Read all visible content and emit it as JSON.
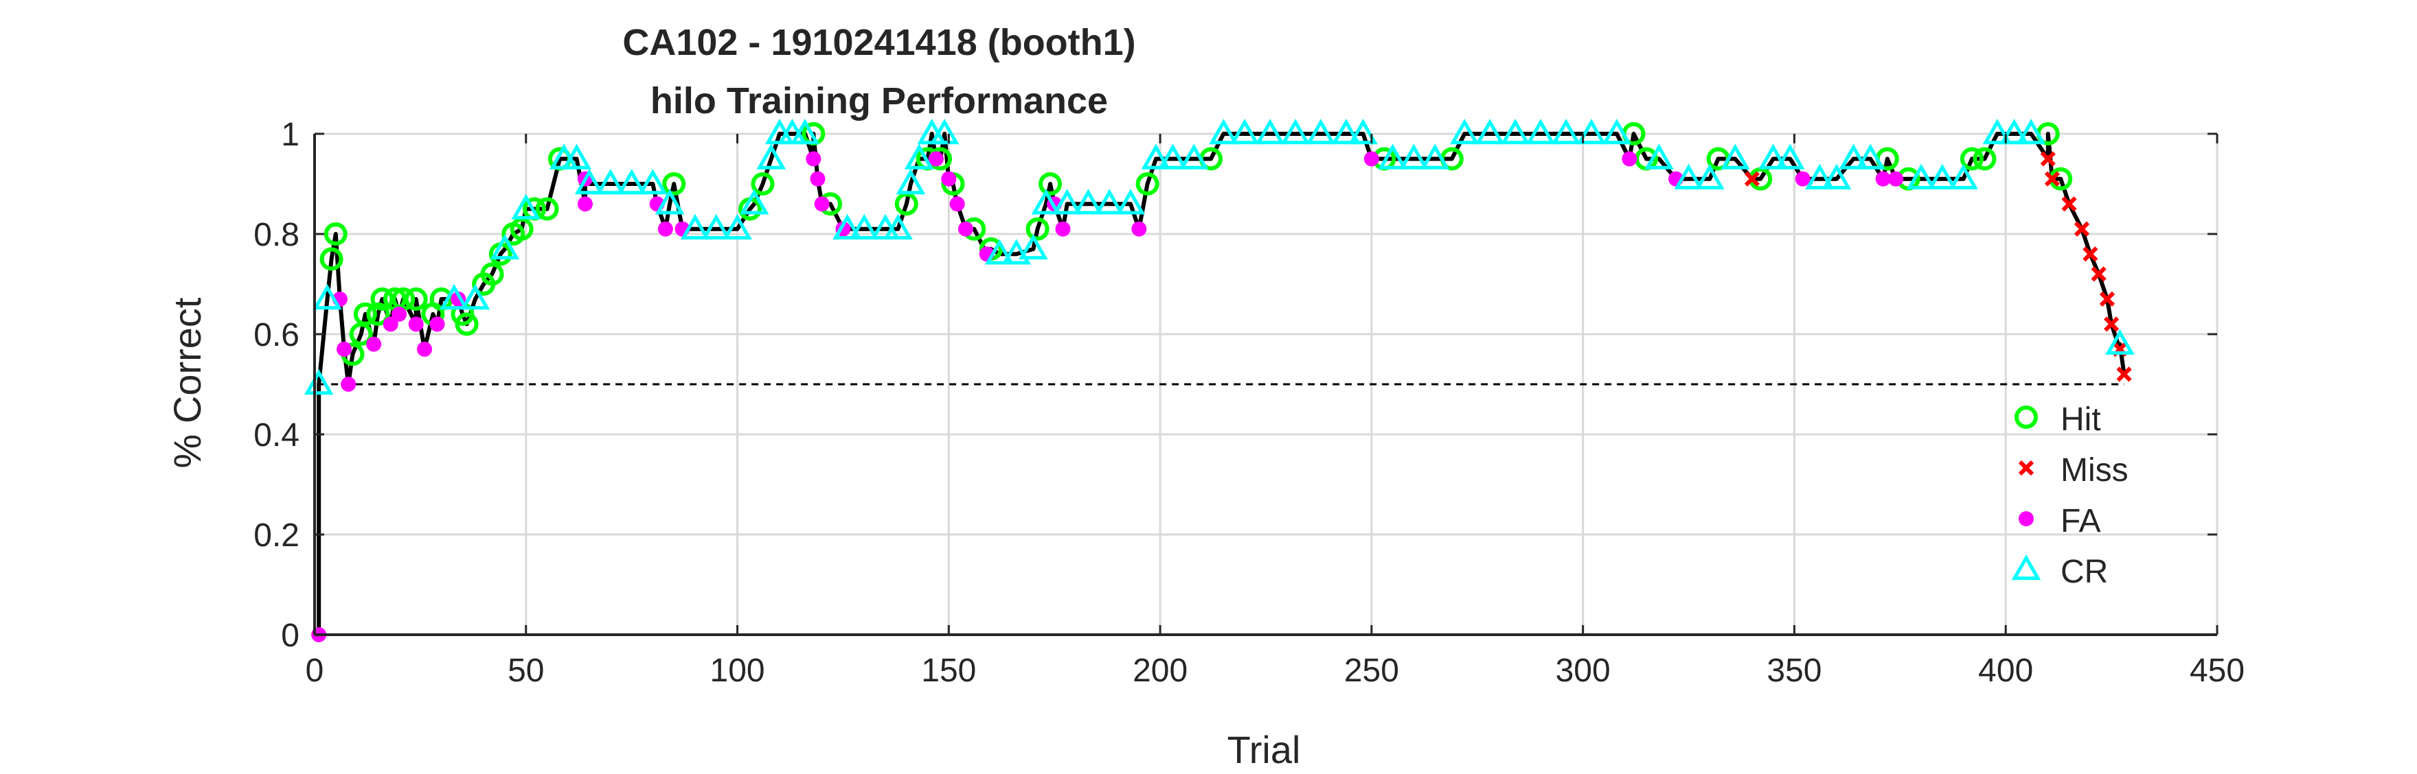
{
  "chart_data": {
    "type": "line",
    "title": "CA102 - 1910241418 (booth1)",
    "subtitle": "hilo Training Performance",
    "xlabel": "Trial",
    "ylabel": "% Correct",
    "xlim": [
      0,
      450
    ],
    "ylim": [
      0,
      1
    ],
    "xticks": [
      0,
      50,
      100,
      150,
      200,
      250,
      300,
      350,
      400,
      450
    ],
    "yticks": [
      0,
      0.2,
      0.4,
      0.6,
      0.8,
      1
    ],
    "xtick_labels": [
      "0",
      "50",
      "100",
      "150",
      "200",
      "250",
      "300",
      "350",
      "400",
      "450"
    ],
    "ytick_labels": [
      "0",
      "0.2",
      "0.4",
      "0.6",
      "0.8",
      "1"
    ],
    "grid": true,
    "legend_position": "bottom-right",
    "chance_line": 0.5,
    "line_color": "#000000",
    "series": [
      {
        "name": "Hit",
        "marker": "circle",
        "color": "#00ff00",
        "points": [
          [
            4,
            0.75
          ],
          [
            5,
            0.8
          ],
          [
            9,
            0.56
          ],
          [
            11,
            0.6
          ],
          [
            12,
            0.64
          ],
          [
            15,
            0.64
          ],
          [
            16,
            0.67
          ],
          [
            19,
            0.67
          ],
          [
            21,
            0.67
          ],
          [
            24,
            0.67
          ],
          [
            28,
            0.64
          ],
          [
            30,
            0.67
          ],
          [
            35,
            0.64
          ],
          [
            36,
            0.62
          ],
          [
            40,
            0.7
          ],
          [
            42,
            0.72
          ],
          [
            44,
            0.76
          ],
          [
            47,
            0.8
          ],
          [
            49,
            0.81
          ],
          [
            52,
            0.85
          ],
          [
            55,
            0.85
          ],
          [
            58,
            0.95
          ],
          [
            85,
            0.9
          ],
          [
            103,
            0.85
          ],
          [
            106,
            0.9
          ],
          [
            118,
            1
          ],
          [
            122,
            0.86
          ],
          [
            140,
            0.86
          ],
          [
            145,
            0.95
          ],
          [
            148,
            0.95
          ],
          [
            151,
            0.9
          ],
          [
            156,
            0.81
          ],
          [
            160,
            0.77
          ],
          [
            171,
            0.81
          ],
          [
            174,
            0.9
          ],
          [
            197,
            0.9
          ],
          [
            212,
            0.95
          ],
          [
            253,
            0.95
          ],
          [
            269,
            0.95
          ],
          [
            312,
            1
          ],
          [
            315,
            0.95
          ],
          [
            332,
            0.95
          ],
          [
            342,
            0.91
          ],
          [
            372,
            0.95
          ],
          [
            377,
            0.91
          ],
          [
            392,
            0.95
          ],
          [
            395,
            0.95
          ],
          [
            410,
            1
          ],
          [
            413,
            0.91
          ]
        ]
      },
      {
        "name": "Miss",
        "marker": "x",
        "color": "#ff0000",
        "points": [
          [
            340,
            0.91
          ],
          [
            410,
            0.95
          ],
          [
            411,
            0.91
          ],
          [
            415,
            0.86
          ],
          [
            418,
            0.81
          ],
          [
            420,
            0.76
          ],
          [
            422,
            0.72
          ],
          [
            424,
            0.67
          ],
          [
            425,
            0.62
          ],
          [
            427,
            0.57
          ],
          [
            428,
            0.52
          ]
        ]
      },
      {
        "name": "FA",
        "marker": "dot",
        "color": "#ff00ff",
        "points": [
          [
            1,
            0
          ],
          [
            6,
            0.67
          ],
          [
            7,
            0.57
          ],
          [
            8,
            0.5
          ],
          [
            14,
            0.58
          ],
          [
            18,
            0.62
          ],
          [
            20,
            0.64
          ],
          [
            24,
            0.62
          ],
          [
            26,
            0.57
          ],
          [
            29,
            0.62
          ],
          [
            34,
            0.67
          ],
          [
            64,
            0.86
          ],
          [
            64,
            0.91
          ],
          [
            81,
            0.86
          ],
          [
            83,
            0.81
          ],
          [
            87,
            0.81
          ],
          [
            118,
            0.95
          ],
          [
            119,
            0.91
          ],
          [
            120,
            0.86
          ],
          [
            125,
            0.81
          ],
          [
            147,
            0.95
          ],
          [
            150,
            0.91
          ],
          [
            152,
            0.86
          ],
          [
            154,
            0.81
          ],
          [
            159,
            0.76
          ],
          [
            175,
            0.86
          ],
          [
            177,
            0.81
          ],
          [
            195,
            0.81
          ],
          [
            250,
            0.95
          ],
          [
            311,
            0.95
          ],
          [
            322,
            0.91
          ],
          [
            352,
            0.91
          ],
          [
            371,
            0.91
          ],
          [
            374,
            0.91
          ]
        ]
      },
      {
        "name": "CR",
        "marker": "triangle",
        "color": "#00ffff",
        "points": [
          [
            1,
            0.5
          ],
          [
            3,
            0.67
          ],
          [
            33,
            0.67
          ],
          [
            38,
            0.67
          ],
          [
            45,
            0.77
          ],
          [
            50,
            0.85
          ],
          [
            59,
            0.95
          ],
          [
            62,
            0.95
          ],
          [
            65,
            0.9
          ],
          [
            70,
            0.9
          ],
          [
            75,
            0.9
          ],
          [
            80,
            0.9
          ],
          [
            84,
            0.86
          ],
          [
            90,
            0.81
          ],
          [
            95,
            0.81
          ],
          [
            100,
            0.81
          ],
          [
            104,
            0.86
          ],
          [
            108,
            0.95
          ],
          [
            110,
            1
          ],
          [
            113,
            1
          ],
          [
            116,
            1
          ],
          [
            126,
            0.81
          ],
          [
            130,
            0.81
          ],
          [
            135,
            0.81
          ],
          [
            138,
            0.81
          ],
          [
            141,
            0.9
          ],
          [
            143,
            0.95
          ],
          [
            146,
            1
          ],
          [
            149,
            1
          ],
          [
            162,
            0.76
          ],
          [
            166,
            0.76
          ],
          [
            170,
            0.77
          ],
          [
            173,
            0.86
          ],
          [
            178,
            0.86
          ],
          [
            183,
            0.86
          ],
          [
            188,
            0.86
          ],
          [
            193,
            0.86
          ],
          [
            199,
            0.95
          ],
          [
            203,
            0.95
          ],
          [
            208,
            0.95
          ],
          [
            215,
            1
          ],
          [
            220,
            1
          ],
          [
            226,
            1
          ],
          [
            232,
            1
          ],
          [
            238,
            1
          ],
          [
            244,
            1
          ],
          [
            248,
            1
          ],
          [
            255,
            0.95
          ],
          [
            260,
            0.95
          ],
          [
            265,
            0.95
          ],
          [
            272,
            1
          ],
          [
            278,
            1
          ],
          [
            284,
            1
          ],
          [
            290,
            1
          ],
          [
            296,
            1
          ],
          [
            302,
            1
          ],
          [
            308,
            1
          ],
          [
            318,
            0.95
          ],
          [
            325,
            0.91
          ],
          [
            330,
            0.91
          ],
          [
            336,
            0.95
          ],
          [
            345,
            0.95
          ],
          [
            349,
            0.95
          ],
          [
            356,
            0.91
          ],
          [
            360,
            0.91
          ],
          [
            364,
            0.95
          ],
          [
            368,
            0.95
          ],
          [
            380,
            0.91
          ],
          [
            385,
            0.91
          ],
          [
            390,
            0.91
          ],
          [
            398,
            1
          ],
          [
            402,
            1
          ],
          [
            406,
            1
          ],
          [
            427,
            0.58
          ]
        ]
      }
    ]
  }
}
